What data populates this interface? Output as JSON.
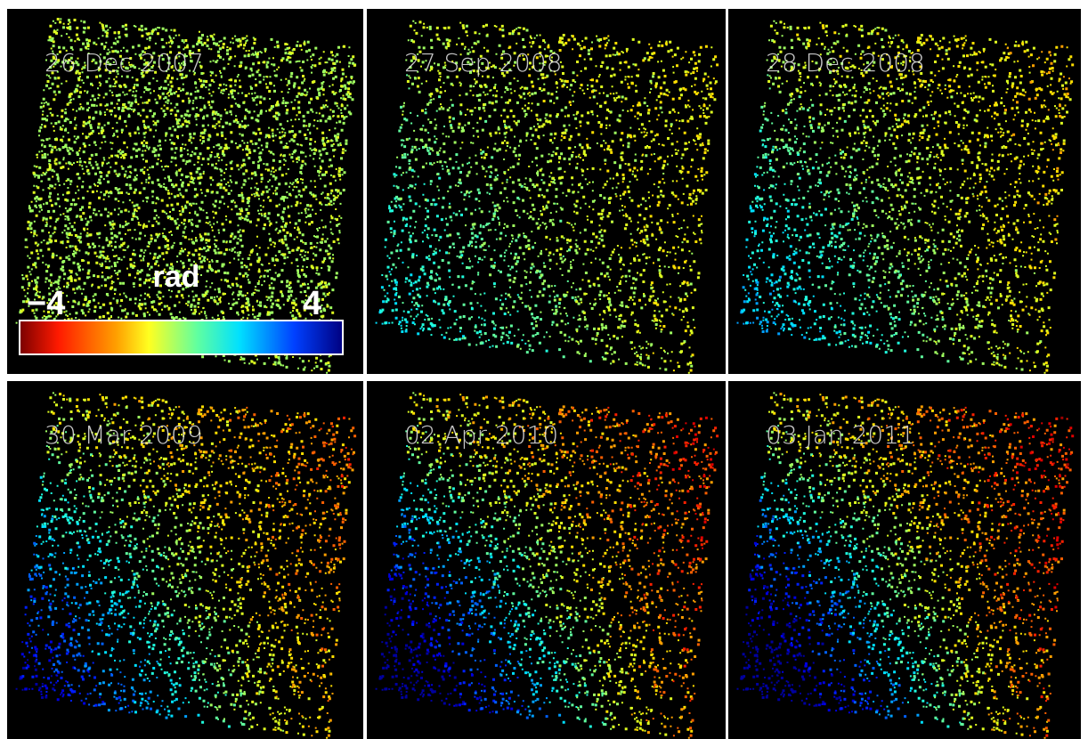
{
  "panels": [
    {
      "label": "26 Dec 2007"
    },
    {
      "label": "27 Sep 2008"
    },
    {
      "label": "28 Dec 2008"
    },
    {
      "label": "30 Mar 2009"
    },
    {
      "label": "02 Apr 2010"
    },
    {
      "label": "03 Jan 2011"
    }
  ],
  "colorbar": {
    "unit": "rad",
    "min_label": "−4",
    "max_label": "4"
  }
}
